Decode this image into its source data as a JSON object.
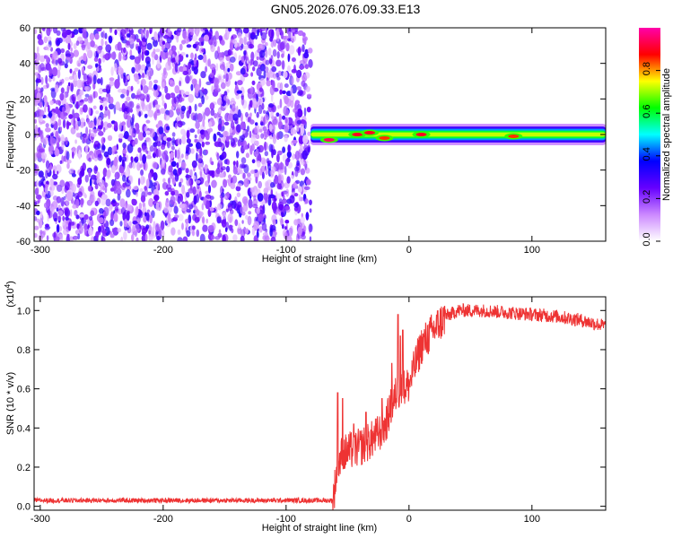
{
  "figure": {
    "title": "GN05.2026.076.09.33.E13"
  },
  "chart_data": [
    {
      "type": "heatmap",
      "title": "GN05.2026.076.09.33.E13",
      "xlabel": "Height of straight line (km)",
      "ylabel": "Frequency (Hz)",
      "xlim": [
        -305,
        160
      ],
      "ylim": [
        -60,
        60
      ],
      "xticks": [
        -300,
        -200,
        -100,
        0,
        100
      ],
      "yticks": [
        60,
        40,
        20,
        0,
        -20,
        -40,
        -60
      ],
      "xtick_labels": [
        "-300",
        "-200",
        "-100",
        "0",
        "100"
      ],
      "ytick_labels": [
        "60",
        "40",
        "20",
        "0",
        "-20",
        "-40",
        "-60"
      ],
      "noise_region_x": [
        -305,
        -80
      ],
      "signal_band": {
        "x": [
          -80,
          160
        ],
        "center_freq": 0,
        "half_width": 3
      },
      "peaks": [
        {
          "x": -65,
          "freq": -3,
          "amplitude": 0.95
        },
        {
          "x": -42,
          "freq": 0,
          "amplitude": 0.9
        },
        {
          "x": -32,
          "freq": 1,
          "amplitude": 0.9
        },
        {
          "x": -20,
          "freq": -2,
          "amplitude": 0.85
        },
        {
          "x": 10,
          "freq": 0,
          "amplitude": 0.9
        },
        {
          "x": 85,
          "freq": -1,
          "amplitude": 0.85
        }
      ],
      "colorbar": {
        "label": "Normalized spectral amplitude",
        "range": [
          0,
          1
        ],
        "ticks": [
          0.0,
          0.2,
          0.4,
          0.6,
          0.8
        ],
        "tick_labels": [
          "0.0",
          "0.2",
          "0.4",
          "0.6",
          "0.8"
        ],
        "colors": [
          "#ffffff",
          "#cc88ff",
          "#6600ff",
          "#0000ff",
          "#00ffff",
          "#00ff00",
          "#ffff00",
          "#ff0000",
          "#ff00aa"
        ]
      },
      "grid": false
    },
    {
      "type": "line",
      "title": "",
      "xlabel": "Height of straight line (km)",
      "ylabel": "SNR (10 * v/v)",
      "scale_label_base": "(x10",
      "scale_label_exp": "4",
      "scale_label_close": ")",
      "xlim": [
        -305,
        160
      ],
      "ylim": [
        -0.02,
        1.07
      ],
      "xticks": [
        -300,
        -200,
        -100,
        0,
        100
      ],
      "yticks": [
        0.0,
        0.2,
        0.4,
        0.6,
        0.8,
        1.0
      ],
      "xtick_labels": [
        "-300",
        "-200",
        "-100",
        "0",
        "100"
      ],
      "ytick_labels": [
        "0.0",
        "0.2",
        "0.4",
        "0.6",
        "0.8",
        "1.0"
      ],
      "line_color": "#ee3333",
      "series": [
        {
          "x": [
            -305,
            -200,
            -100,
            -62,
            -58,
            -55,
            -50,
            -40,
            -30,
            -20,
            -15,
            -10,
            -5,
            0,
            10,
            20,
            30,
            40,
            60,
            80,
            100,
            120,
            140,
            160
          ],
          "y": [
            0.03,
            0.03,
            0.03,
            0.03,
            0.2,
            0.26,
            0.28,
            0.3,
            0.34,
            0.4,
            0.5,
            0.58,
            0.6,
            0.62,
            0.82,
            0.9,
            0.97,
            1.0,
            1.0,
            0.99,
            0.98,
            0.97,
            0.95,
            0.92
          ]
        }
      ],
      "spikes": [
        {
          "x": -58,
          "y": 0.58
        },
        {
          "x": -54,
          "y": 0.55
        },
        {
          "x": -45,
          "y": 0.42
        },
        {
          "x": -35,
          "y": 0.48
        },
        {
          "x": -22,
          "y": 0.55
        },
        {
          "x": -14,
          "y": 0.73
        },
        {
          "x": -9,
          "y": 0.98
        },
        {
          "x": -7,
          "y": 0.87
        },
        {
          "x": -5,
          "y": 0.9
        }
      ],
      "grid": false
    }
  ]
}
